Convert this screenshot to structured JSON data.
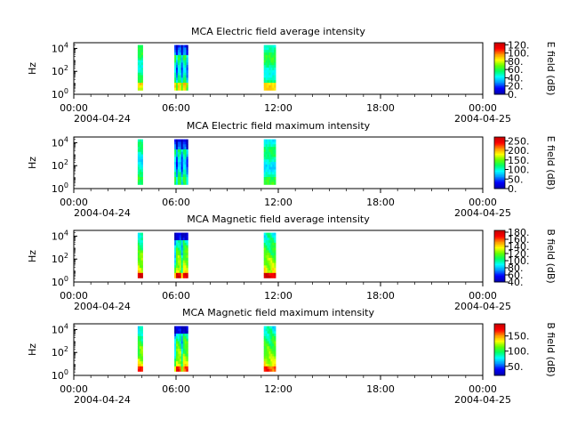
{
  "chart_data": [
    {
      "type": "heatmap",
      "title": "MCA  Electric field average intensity",
      "ylabel": "Hz",
      "colorbar_label": "E field (dB)",
      "colorbar_ticks": [
        "0.",
        "20.",
        "40.",
        "60.",
        "80.",
        "100.",
        "120."
      ],
      "colorbar_range": [
        0,
        125
      ],
      "ylim_exp": [
        0,
        4.5
      ],
      "y_ticks": [
        {
          "base": "10",
          "exp": "0"
        },
        {
          "base": "10",
          "exp": "2"
        },
        {
          "base": "10",
          "exp": "4"
        }
      ],
      "x_ticks": [
        "00:00",
        "06:00",
        "12:00",
        "18:00",
        "00:00"
      ],
      "x_dates": [
        "2004-04-24",
        "2004-04-25"
      ],
      "xlim_hours": [
        0,
        24
      ],
      "freq_range_exp": [
        0.35,
        4.3
      ],
      "intervals_hours": [
        [
          3.75,
          4.05
        ],
        [
          5.9,
          6.7
        ],
        [
          11.15,
          11.85
        ]
      ]
    },
    {
      "type": "heatmap",
      "title": "MCA  Electric field maximum intensity",
      "ylabel": "Hz",
      "colorbar_label": "E field (dB)",
      "colorbar_ticks": [
        "0.",
        "50.",
        "100.",
        "150.",
        "200.",
        "250."
      ],
      "colorbar_range": [
        0,
        270
      ],
      "ylim_exp": [
        0,
        4.5
      ],
      "y_ticks": [
        {
          "base": "10",
          "exp": "0"
        },
        {
          "base": "10",
          "exp": "2"
        },
        {
          "base": "10",
          "exp": "4"
        }
      ],
      "x_ticks": [
        "00:00",
        "06:00",
        "12:00",
        "18:00",
        "00:00"
      ],
      "x_dates": [
        "2004-04-24",
        "2004-04-25"
      ],
      "xlim_hours": [
        0,
        24
      ],
      "freq_range_exp": [
        0.35,
        4.3
      ],
      "intervals_hours": [
        [
          3.75,
          4.05
        ],
        [
          5.9,
          6.7
        ],
        [
          11.15,
          11.85
        ]
      ]
    },
    {
      "type": "heatmap",
      "title": "MCA  Magnetic field average intensity",
      "ylabel": "Hz",
      "colorbar_label": "B field (dB)",
      "colorbar_ticks": [
        "40.",
        "60.",
        "80.",
        "100.",
        "120.",
        "140.",
        "160.",
        "180."
      ],
      "colorbar_range": [
        40,
        185
      ],
      "ylim_exp": [
        0,
        4.5
      ],
      "y_ticks": [
        {
          "base": "10",
          "exp": "0"
        },
        {
          "base": "10",
          "exp": "2"
        },
        {
          "base": "10",
          "exp": "4"
        }
      ],
      "x_ticks": [
        "00:00",
        "06:00",
        "12:00",
        "18:00",
        "00:00"
      ],
      "x_dates": [
        "2004-04-24",
        "2004-04-25"
      ],
      "xlim_hours": [
        0,
        24
      ],
      "freq_range_exp": [
        0.35,
        4.3
      ],
      "intervals_hours": [
        [
          3.75,
          4.05
        ],
        [
          5.9,
          6.7
        ],
        [
          11.15,
          11.85
        ]
      ]
    },
    {
      "type": "heatmap",
      "title": "MCA  Magnetic field maximum intensity",
      "ylabel": "Hz",
      "colorbar_label": "B field (dB)",
      "colorbar_ticks": [
        "50.",
        "100.",
        "150."
      ],
      "colorbar_range": [
        20,
        190
      ],
      "ylim_exp": [
        0,
        4.5
      ],
      "y_ticks": [
        {
          "base": "10",
          "exp": "0"
        },
        {
          "base": "10",
          "exp": "2"
        },
        {
          "base": "10",
          "exp": "4"
        }
      ],
      "x_ticks": [
        "00:00",
        "06:00",
        "12:00",
        "18:00",
        "00:00"
      ],
      "x_dates": [
        "2004-04-24",
        "2004-04-25"
      ],
      "xlim_hours": [
        0,
        24
      ],
      "freq_range_exp": [
        0.35,
        4.3
      ],
      "intervals_hours": [
        [
          3.75,
          4.05
        ],
        [
          5.9,
          6.7
        ],
        [
          11.15,
          11.85
        ]
      ]
    }
  ],
  "colors": {
    "colormap": [
      "#0000b4",
      "#0000ff",
      "#0096ff",
      "#00ffff",
      "#00ff64",
      "#64ff00",
      "#ffff00",
      "#ff9600",
      "#ff0000",
      "#c80000"
    ],
    "axis": "#000000",
    "background": "#ffffff"
  }
}
